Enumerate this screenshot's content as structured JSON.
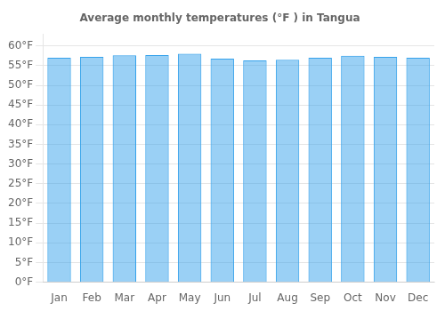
{
  "chart_data": {
    "type": "bar",
    "title": "Average monthly temperatures (°F ) in Tangua",
    "categories": [
      "Jan",
      "Feb",
      "Mar",
      "Apr",
      "May",
      "Jun",
      "Jul",
      "Aug",
      "Sep",
      "Oct",
      "Nov",
      "Dec"
    ],
    "values": [
      57.0,
      57.2,
      57.6,
      57.7,
      58.0,
      56.8,
      56.3,
      56.5,
      57.0,
      57.5,
      57.2,
      57.0
    ],
    "ylim": [
      0,
      63
    ],
    "yticks": [
      {
        "value": 0,
        "label": "0°F"
      },
      {
        "value": 5,
        "label": "5°F"
      },
      {
        "value": 10,
        "label": "10°F"
      },
      {
        "value": 15,
        "label": "15°F"
      },
      {
        "value": 20,
        "label": "20°F"
      },
      {
        "value": 25,
        "label": "25°F"
      },
      {
        "value": 30,
        "label": "30°F"
      },
      {
        "value": 35,
        "label": "35°F"
      },
      {
        "value": 40,
        "label": "40°F"
      },
      {
        "value": 45,
        "label": "45°F"
      },
      {
        "value": 50,
        "label": "50°F"
      },
      {
        "value": 55,
        "label": "55°F"
      },
      {
        "value": 60,
        "label": "60°F"
      }
    ],
    "grid": true
  }
}
